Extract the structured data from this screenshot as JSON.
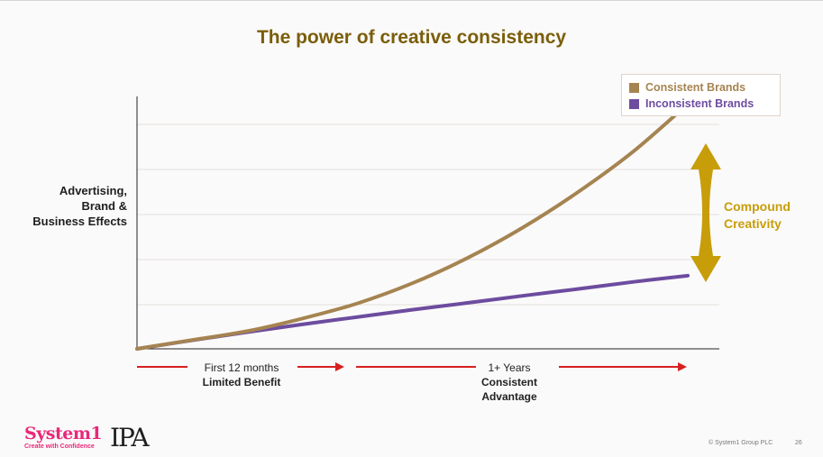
{
  "title": "The power of creative consistency",
  "y_axis_label": [
    "Advertising,",
    "Brand &",
    "Business Effects"
  ],
  "legend": [
    {
      "label": "Consistent Brands",
      "color": "#a58451"
    },
    {
      "label": "Inconsistent Brands",
      "color": "#6d4c9f"
    }
  ],
  "annotation": {
    "lines": [
      "Compound",
      "Creativity"
    ],
    "color": "#c89d0a"
  },
  "timeline": [
    {
      "line1": "First 12 months",
      "line2": "Limited Benefit"
    },
    {
      "line1": "1+ Years",
      "line2": "Consistent",
      "line3": "Advantage"
    }
  ],
  "footer": {
    "logo_system1": "System1",
    "logo_tagline": "Create with Confidence",
    "logo_ipa": "IPA",
    "copyright": "© System1 Group PLC",
    "page_number": "26"
  },
  "chart_data": {
    "type": "line",
    "title": "The power of creative consistency",
    "xlabel": "",
    "ylabel": "Advertising, Brand & Business Effects",
    "grid": true,
    "legend_position": "top-right",
    "x": [
      0,
      0.1,
      0.2,
      0.3,
      0.4,
      0.5,
      0.6,
      0.7,
      0.8,
      0.9,
      1.0
    ],
    "ylim": [
      0,
      1
    ],
    "series": [
      {
        "name": "Consistent Brands",
        "color": "#a58451",
        "values": [
          0,
          0.035,
          0.07,
          0.12,
          0.18,
          0.26,
          0.36,
          0.48,
          0.62,
          0.78,
          0.97
        ]
      },
      {
        "name": "Inconsistent Brands",
        "color": "#6d4c9f",
        "values": [
          0,
          0.034,
          0.066,
          0.097,
          0.126,
          0.155,
          0.182,
          0.21,
          0.237,
          0.265,
          0.29
        ]
      }
    ]
  }
}
